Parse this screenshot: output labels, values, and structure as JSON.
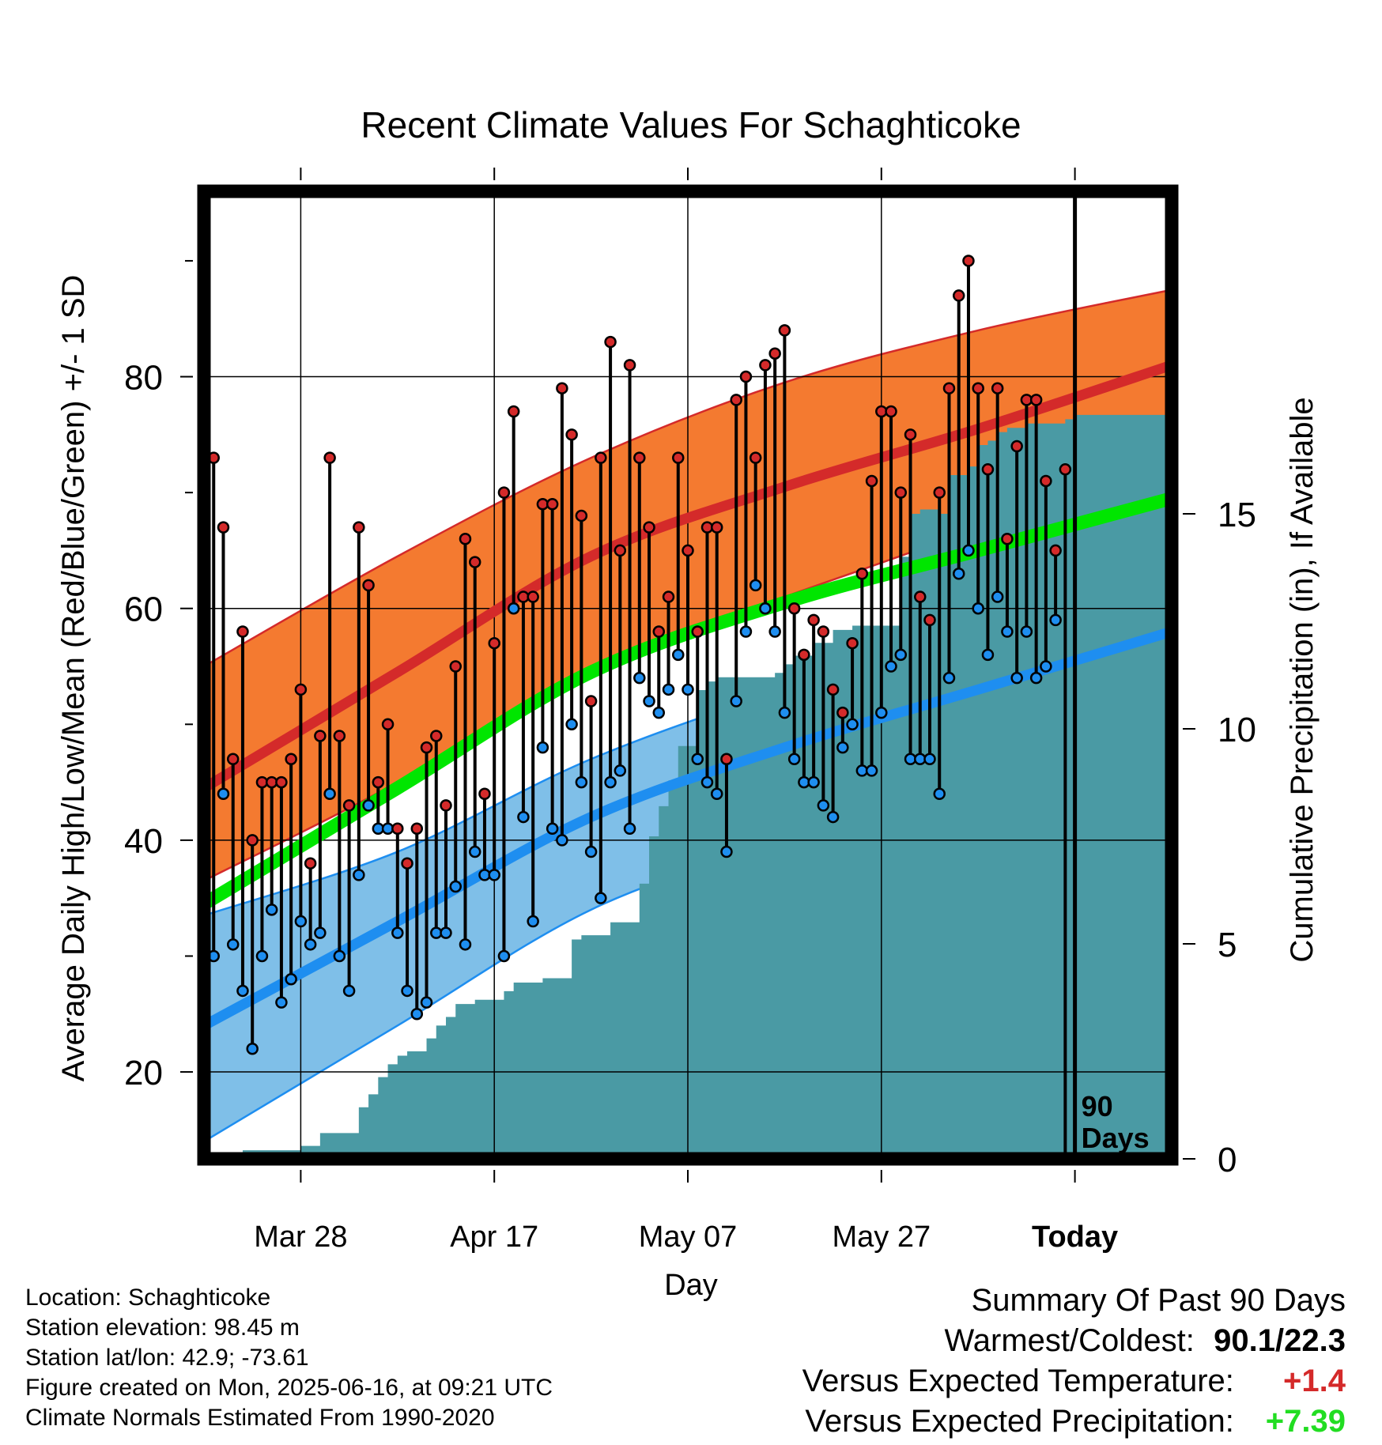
{
  "chart_data": {
    "type": "line",
    "title": "Recent Climate Values For Schaghticoke",
    "xlabel": "Day",
    "ylabel": "Average Daily High/Low/Mean (Red/Blue/Green) +/- 1 SD",
    "y2label": "Cumulative Precipitation (in), If Available",
    "ylim": [
      12.5,
      96
    ],
    "y2lim": [
      0,
      22.5
    ],
    "yticks": [
      20,
      40,
      60,
      80
    ],
    "y2ticks": [
      0,
      5,
      10,
      15
    ],
    "xlim": [
      0,
      100
    ],
    "xtick_positions": [
      10,
      30,
      50,
      70,
      90
    ],
    "xtick_labels": [
      "Mar 28",
      "Apr 17",
      "May 07",
      "May 27",
      "Today"
    ],
    "grid": true,
    "today_marker": {
      "x": 90,
      "label_line1": "90",
      "label_line2": "Days"
    },
    "normals": {
      "x": [
        0,
        20,
        40,
        60,
        80,
        100
      ],
      "high_mean": [
        44.5,
        54.5,
        64.5,
        70.5,
        75.5,
        81
      ],
      "high_upper": [
        55,
        64.5,
        73,
        79.5,
        84,
        87.5
      ],
      "high_lower": [
        36.5,
        45,
        55,
        61,
        67,
        74
      ],
      "mean": [
        34.5,
        44.5,
        54.5,
        60.5,
        65,
        69.5
      ],
      "low_mean": [
        24,
        33,
        42,
        48,
        53,
        58
      ],
      "low_upper": [
        33.5,
        39,
        47,
        53,
        58,
        64.5
      ],
      "low_lower": [
        14,
        24,
        34,
        40,
        45.5,
        52.5
      ]
    },
    "daily_x": [
      0,
      1,
      2,
      3,
      4,
      5,
      6,
      7,
      8,
      9,
      10,
      11,
      12,
      13,
      14,
      15,
      16,
      17,
      18,
      19,
      20,
      21,
      22,
      23,
      24,
      25,
      26,
      27,
      28,
      29,
      30,
      31,
      32,
      33,
      34,
      35,
      36,
      37,
      38,
      39,
      40,
      41,
      42,
      43,
      44,
      45,
      46,
      47,
      48,
      49,
      50,
      51,
      52,
      53,
      54,
      55,
      56,
      57,
      58,
      59,
      60,
      61,
      62,
      63,
      64,
      65,
      66,
      67,
      68,
      69,
      70,
      71,
      72,
      73,
      74,
      75,
      76,
      77,
      78,
      79,
      80,
      81,
      82,
      83,
      84,
      85,
      86,
      87,
      88,
      89
    ],
    "daily_high": [
      53,
      73,
      67,
      47,
      58,
      40,
      45,
      45,
      45,
      47,
      53,
      38,
      49,
      73,
      49,
      43,
      67,
      62,
      45,
      50,
      41,
      38,
      41,
      48,
      49,
      43,
      55,
      66,
      64,
      44,
      57,
      70,
      77,
      61,
      61,
      69,
      69,
      79,
      75,
      68,
      52,
      73,
      83,
      65,
      81,
      73,
      67,
      58,
      61,
      73,
      65,
      58,
      67,
      67,
      47,
      78,
      80,
      73,
      81,
      82,
      84,
      60,
      56,
      59,
      58,
      53,
      51,
      57,
      63,
      71,
      77,
      77,
      70,
      75,
      61,
      59,
      70,
      79,
      87,
      90,
      79,
      72,
      79,
      66,
      74,
      78,
      78,
      71,
      65,
      72
    ],
    "daily_low": [
      27,
      30,
      44,
      31,
      27,
      22,
      30,
      34,
      26,
      28,
      33,
      31,
      32,
      44,
      30,
      27,
      37,
      43,
      41,
      41,
      32,
      27,
      25,
      26,
      32,
      32,
      36,
      31,
      39,
      37,
      37,
      30,
      60,
      42,
      33,
      48,
      41,
      40,
      50,
      45,
      39,
      35,
      45,
      46,
      41,
      54,
      52,
      51,
      53,
      56,
      53,
      47,
      45,
      44,
      39,
      52,
      58,
      62,
      60,
      58,
      51,
      47,
      45,
      45,
      43,
      42,
      48,
      50,
      46,
      46,
      51,
      55,
      56,
      47,
      47,
      47,
      44,
      54,
      63,
      65,
      60,
      56,
      61,
      58,
      54,
      58,
      54,
      55,
      59,
      0
    ],
    "precip_x": [
      2,
      3,
      4,
      7,
      10,
      12,
      14,
      16,
      17,
      18,
      19,
      20,
      21,
      22,
      23,
      24,
      25,
      26,
      27,
      28,
      29,
      30,
      31,
      32,
      33,
      35,
      38,
      39,
      40,
      42,
      45,
      46,
      47,
      48,
      49,
      50,
      51,
      52,
      53,
      56,
      58,
      59,
      60,
      61,
      63,
      65,
      67,
      71,
      72,
      73,
      74,
      76,
      77,
      79,
      80,
      81,
      82,
      83,
      85,
      87,
      89,
      90
    ],
    "precip": [
      0,
      0.1,
      0.2,
      0.2,
      0.3,
      0.6,
      0.6,
      1.2,
      1.5,
      1.9,
      2.2,
      2.4,
      2.5,
      2.5,
      2.8,
      3.1,
      3.3,
      3.6,
      3.6,
      3.7,
      3.7,
      3.7,
      3.9,
      4.1,
      4.1,
      4.2,
      5.1,
      5.2,
      5.2,
      5.5,
      6.4,
      7.5,
      8.2,
      8.8,
      9.6,
      9.6,
      10.9,
      11.1,
      11.2,
      11.2,
      11.2,
      11.3,
      11.5,
      11.7,
      12.0,
      12.3,
      12.4,
      12.4,
      14.0,
      15.0,
      15.1,
      15.0,
      15.9,
      16.1,
      16.6,
      16.7,
      16.9,
      17.0,
      17.1,
      17.1,
      17.2,
      17.3
    ]
  },
  "info": {
    "location": "Location: Schaghticoke",
    "elevation": "Station elevation: 98.45 m",
    "latlon": "Station lat/lon: 42.9; -73.61",
    "created": "Figure created on Mon, 2025-06-16, at 09:21 UTC",
    "normals_note": "Climate Normals Estimated From 1990-2020"
  },
  "summary": {
    "title": "Summary Of Past 90 Days",
    "warmest_label": "Warmest/Coldest:",
    "warmest_value": "90.1/22.3",
    "temp_label": "Versus Expected Temperature:",
    "temp_value": "+1.4",
    "precip_label": "Versus Expected Precipitation:",
    "precip_value": "+7.39"
  },
  "colors": {
    "high_band": "#f47a30",
    "high_line": "#d42a2a",
    "mean_line": "#00e600",
    "low_band": "#7fbfe8",
    "low_line": "#1e8ef0",
    "precip_fill": "#4a9aa4",
    "temp_anomaly": "#d42a2a",
    "precip_anomaly": "#22dd22"
  }
}
